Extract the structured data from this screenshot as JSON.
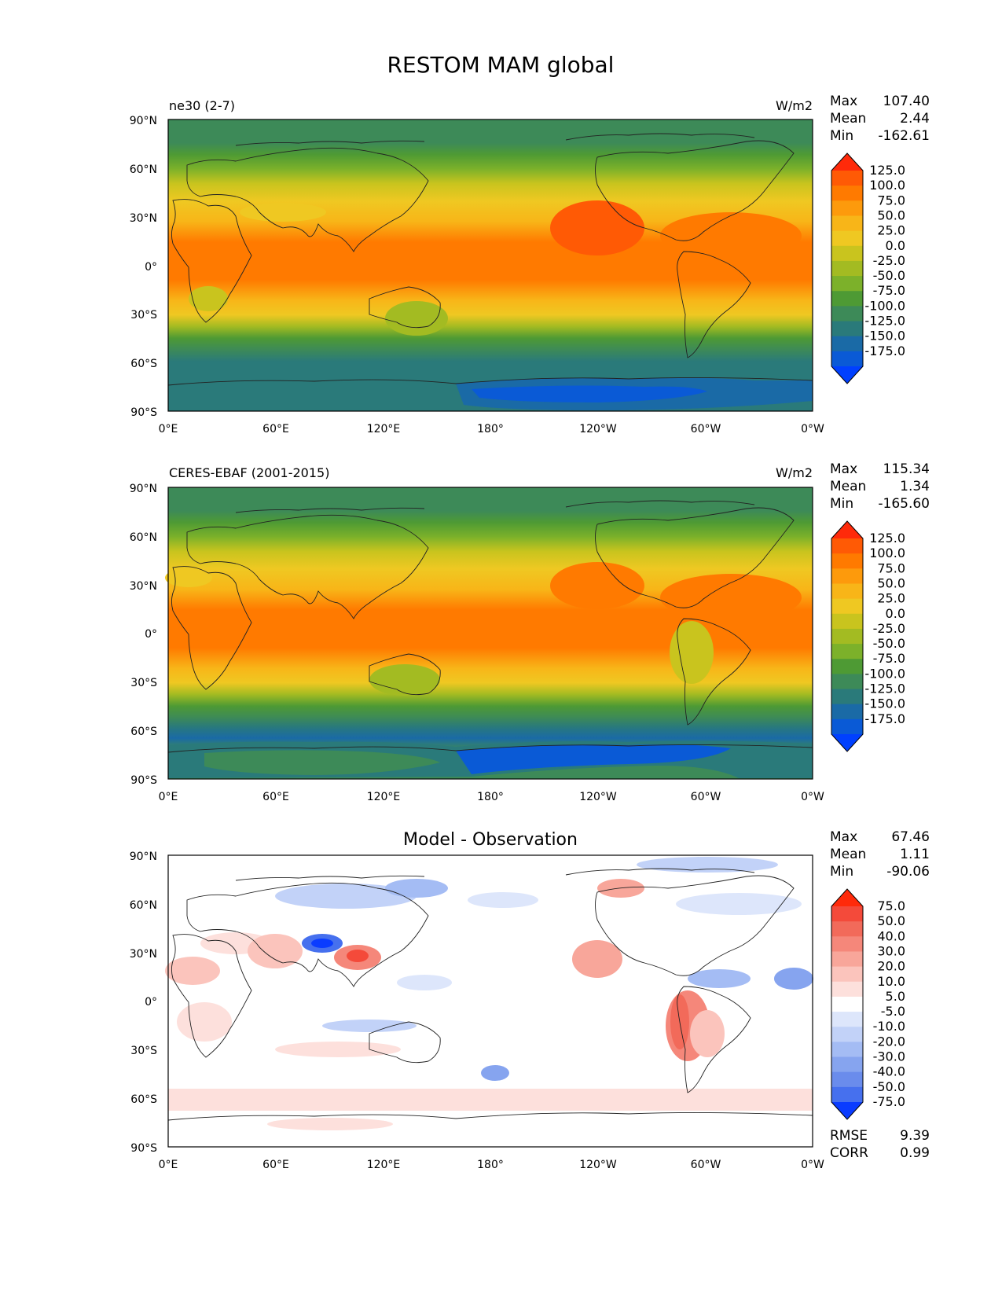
{
  "title": "RESTOM MAM global",
  "lat_ticks": [
    "90°N",
    "60°N",
    "30°N",
    "0°",
    "30°S",
    "60°S",
    "90°S"
  ],
  "lon_ticks": [
    "0°E",
    "60°E",
    "120°E",
    "180°",
    "120°W",
    "60°W",
    "0°W"
  ],
  "panels": [
    {
      "id": "model",
      "left_title": "ne30 (2-7)",
      "center_title": "",
      "units": "W/m2",
      "stats": [
        {
          "label": "Max",
          "value": "107.40"
        },
        {
          "label": "Mean",
          "value": "2.44"
        },
        {
          "label": "Min",
          "value": "-162.61"
        }
      ],
      "colorbar": {
        "labels": [
          "125.0",
          "100.0",
          "75.0",
          "50.0",
          "25.0",
          "0.0",
          "-25.0",
          "-50.0",
          "-75.0",
          "-100.0",
          "-125.0",
          "-150.0",
          "-175.0"
        ],
        "colors": [
          "#ff2a0a",
          "#ff5a05",
          "#ff7a00",
          "#fd9a0c",
          "#f8b518",
          "#efc822",
          "#c9c41e",
          "#a3bb22",
          "#7cb12a",
          "#4e9a34",
          "#3d8a58",
          "#2a7a7a",
          "#1a6aa6",
          "#0a5ad6",
          "#0040ff"
        ],
        "extend": "both"
      }
    },
    {
      "id": "obs",
      "left_title": "CERES-EBAF (2001-2015)",
      "center_title": "",
      "units": "W/m2",
      "stats": [
        {
          "label": "Max",
          "value": "115.34"
        },
        {
          "label": "Mean",
          "value": "1.34"
        },
        {
          "label": "Min",
          "value": "-165.60"
        }
      ],
      "colorbar": {
        "labels": [
          "125.0",
          "100.0",
          "75.0",
          "50.0",
          "25.0",
          "0.0",
          "-25.0",
          "-50.0",
          "-75.0",
          "-100.0",
          "-125.0",
          "-150.0",
          "-175.0"
        ],
        "colors": [
          "#ff2a0a",
          "#ff5a05",
          "#ff7a00",
          "#fd9a0c",
          "#f8b518",
          "#efc822",
          "#c9c41e",
          "#a3bb22",
          "#7cb12a",
          "#4e9a34",
          "#3d8a58",
          "#2a7a7a",
          "#1a6aa6",
          "#0a5ad6",
          "#0040ff"
        ],
        "extend": "both"
      }
    },
    {
      "id": "diff",
      "left_title": "",
      "center_title": "Model - Observation",
      "units": "",
      "stats": [
        {
          "label": "Max",
          "value": "67.46"
        },
        {
          "label": "Mean",
          "value": "1.11"
        },
        {
          "label": "Min",
          "value": "-90.06"
        }
      ],
      "colorbar": {
        "labels": [
          "75.0",
          "50.0",
          "40.0",
          "30.0",
          "20.0",
          "10.0",
          "5.0",
          "-5.0",
          "-10.0",
          "-20.0",
          "-30.0",
          "-40.0",
          "-50.0",
          "-75.0"
        ],
        "colors": [
          "#ff2a0a",
          "#f44a3a",
          "#f26a5a",
          "#f5877a",
          "#f8a69a",
          "#fbc4bc",
          "#fde0dc",
          "#ffffff",
          "#dde6fb",
          "#c2d2f8",
          "#a4bcf4",
          "#86a4ef",
          "#6a8cec",
          "#4670ee",
          "#0a3cff"
        ],
        "extend": "both"
      },
      "metrics": [
        {
          "label": "RMSE",
          "value": "9.39"
        },
        {
          "label": "CORR",
          "value": "0.99"
        }
      ]
    }
  ]
}
